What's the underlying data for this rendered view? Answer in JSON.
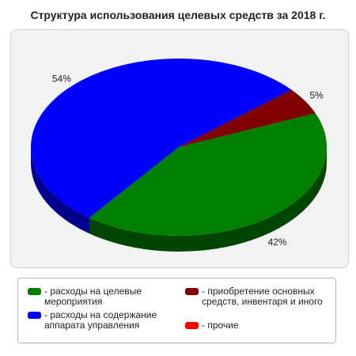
{
  "chart_data": {
    "type": "pie",
    "title": "Структура использования целевых средств за 2018 г.",
    "slices": [
      {
        "label": "- расходы на целевые мероприятия",
        "value": 42,
        "display": "42%",
        "color": "#008000"
      },
      {
        "label": "- расходы на содержание аппарата управления",
        "value": 54,
        "display": "54%",
        "color": "#0000ff"
      },
      {
        "label": "- приобретение основных средств, инвентаря и иного",
        "value": 5,
        "display": "5%",
        "color": "#800000"
      },
      {
        "label": "- прочие",
        "value": 0,
        "display": "",
        "color": "#ff0000"
      }
    ],
    "legend_position": "bottom"
  }
}
